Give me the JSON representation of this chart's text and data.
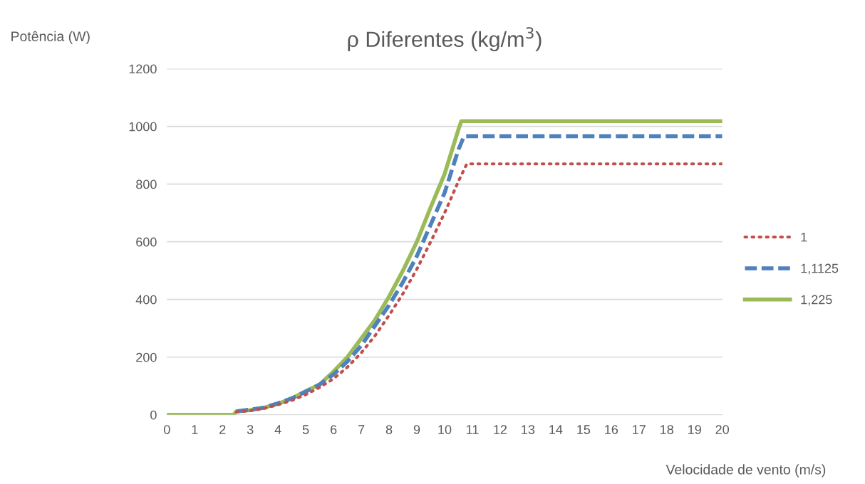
{
  "chart_data": {
    "type": "line",
    "title": "ρ Diferentes (kg/m$^{3}$)",
    "xlabel": "Velocidade de vento (m/s)",
    "ylabel": "Potência (W)",
    "xlim": [
      0,
      20
    ],
    "xticks": [
      0,
      1,
      2,
      3,
      4,
      5,
      6,
      7,
      8,
      9,
      10,
      11,
      12,
      13,
      14,
      15,
      16,
      17,
      18,
      19,
      20
    ],
    "ylim": [
      0,
      1200
    ],
    "yticks": [
      0,
      200,
      400,
      600,
      800,
      1000,
      1200
    ],
    "grid": "y",
    "legend": "right",
    "series": [
      {
        "name": "1",
        "color": "#c0504d",
        "line_style": "dotted",
        "x": [
          2.5,
          3,
          3.5,
          4,
          4.5,
          5,
          5.5,
          6,
          6.5,
          7,
          7.5,
          8,
          8.5,
          9,
          9.5,
          10,
          10.5,
          10.8,
          20
        ],
        "values": [
          10,
          14,
          22,
          35,
          50,
          70,
          95,
          125,
          165,
          215,
          275,
          345,
          420,
          505,
          600,
          700,
          810,
          870,
          870
        ]
      },
      {
        "name": "1,1125",
        "color": "#4f81bd",
        "line_style": "dashed",
        "x": [
          2.5,
          3,
          3.5,
          4,
          4.5,
          5,
          5.5,
          6,
          6.5,
          7,
          7.5,
          8,
          8.5,
          9,
          9.5,
          10,
          10.5,
          10.7,
          20
        ],
        "values": [
          12,
          18,
          25,
          40,
          57,
          80,
          105,
          140,
          185,
          240,
          310,
          380,
          460,
          550,
          660,
          770,
          920,
          966,
          966
        ]
      },
      {
        "name": "1,225",
        "color": "#9bbb59",
        "line_style": "solid",
        "x": [
          0,
          2.4,
          2.5,
          3,
          3.5,
          4,
          4.5,
          5,
          5.5,
          6,
          6.5,
          7,
          7.5,
          8,
          8.5,
          9,
          9.5,
          10,
          10.5,
          10.6,
          20
        ],
        "values": [
          0,
          0,
          12,
          16,
          25,
          38,
          57,
          82,
          105,
          150,
          200,
          265,
          330,
          410,
          500,
          600,
          720,
          835,
          990,
          1018,
          1018
        ]
      }
    ]
  }
}
